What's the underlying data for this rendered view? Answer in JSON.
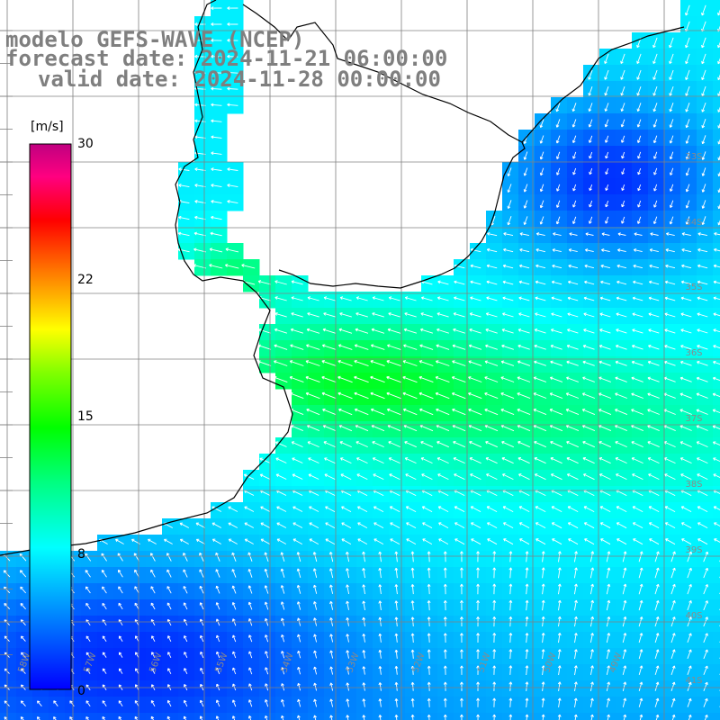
{
  "title": {
    "line1": "modelo GEFS-WAVE (NCEP)",
    "line2": "forecast date: 2024-11-21 06:00:00",
    "line3": "valid date: 2024-11-28 00:00:00"
  },
  "colorbar": {
    "unit": "[m/s]",
    "ticks": [
      "30",
      "22",
      "15",
      "8",
      "0"
    ],
    "tick_values": [
      30,
      22,
      15,
      8,
      0
    ],
    "min": 0,
    "max": 30,
    "colors": [
      "#0000ff",
      "#0080ff",
      "#00ffff",
      "#00ff80",
      "#00ff00",
      "#80ff00",
      "#ffff00",
      "#ff8000",
      "#ff0000",
      "#ff0080",
      "#c00080"
    ]
  },
  "lat_labels": [
    "33S",
    "34S",
    "35S",
    "36S",
    "37S",
    "38S",
    "39S",
    "40S",
    "41S"
  ],
  "lon_labels": [
    "58W",
    "57W",
    "56W",
    "55W",
    "54W",
    "53W",
    "52W",
    "51W",
    "50W",
    "49W"
  ],
  "colors": {
    "land": "#ffffff",
    "grid": "#808080",
    "coast": "#000000",
    "arrow": "#ffffff",
    "title": "#7f7f7f"
  },
  "field_description": "wind speed shading with white direction arrows"
}
